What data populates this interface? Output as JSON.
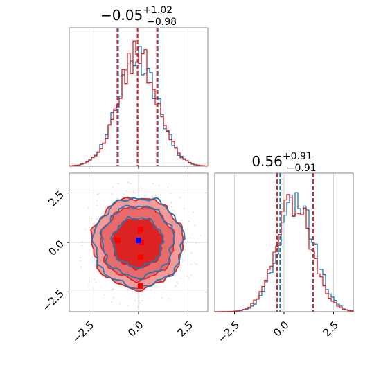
{
  "colors": {
    "blue": "#1f77b4",
    "red": "#d62728",
    "grid": "#cccccc",
    "contour_fill_inner": "#dd2222",
    "contour_fill_outer": "#f19b9b",
    "marker_red": "#ff0000",
    "marker_blue": "#0000ff"
  },
  "chart_data": [
    {
      "panel": "marginal-x",
      "type": "histogram",
      "title_main": "−0.05",
      "title_sup": "+1.02",
      "title_sub": "−0.98",
      "xlim": [
        -3.5,
        3.5
      ],
      "quantile_lines": {
        "blue": [
          -1.03,
          -0.05,
          0.97
        ],
        "red": [
          -1.07,
          -0.05,
          0.93
        ]
      },
      "grid": true,
      "series": [
        {
          "color": "blue",
          "mean": -0.05,
          "std": 1.0
        },
        {
          "color": "red",
          "mean": -0.05,
          "std": 1.0
        }
      ]
    },
    {
      "panel": "marginal-y",
      "type": "histogram",
      "title_main": "0.56",
      "title_sup": "+0.91",
      "title_sub": "−0.91",
      "xlim": [
        -3.5,
        3.5
      ],
      "xticks": [
        "−2.5",
        "0.0",
        "2.5"
      ],
      "xtick_values": [
        -2.5,
        0.0,
        2.5
      ],
      "quantile_lines": {
        "blue": [
          -0.2,
          1.47
        ],
        "red": [
          -0.35,
          1.5
        ]
      },
      "grid": true,
      "series": [
        {
          "color": "blue",
          "mean": 0.6,
          "std": 0.91
        },
        {
          "color": "red",
          "mean": 0.5,
          "std": 0.91
        }
      ]
    },
    {
      "panel": "joint",
      "type": "contour",
      "xlim": [
        -3.5,
        3.5
      ],
      "ylim": [
        -3.5,
        3.5
      ],
      "xticks": [
        "−2.5",
        "0.0",
        "2.5"
      ],
      "xtick_values": [
        -2.5,
        0.0,
        2.5
      ],
      "yticks": [
        "2.5",
        "0.0",
        "−2.5"
      ],
      "ytick_values": [
        2.5,
        0.0,
        -2.5
      ],
      "grid": true,
      "center": [
        -0.05,
        0.56
      ],
      "contour_levels": [
        1.25,
        1.85,
        2.3
      ],
      "markers": {
        "red": [
          [
            -1.05,
            0.7
          ],
          [
            0.1,
            1.25
          ],
          [
            0.1,
            -0.15
          ],
          [
            0.1,
            -1.6
          ],
          [
            0.15,
            0.6
          ]
        ],
        "blue": [
          [
            0.0,
            0.7
          ]
        ]
      }
    }
  ]
}
